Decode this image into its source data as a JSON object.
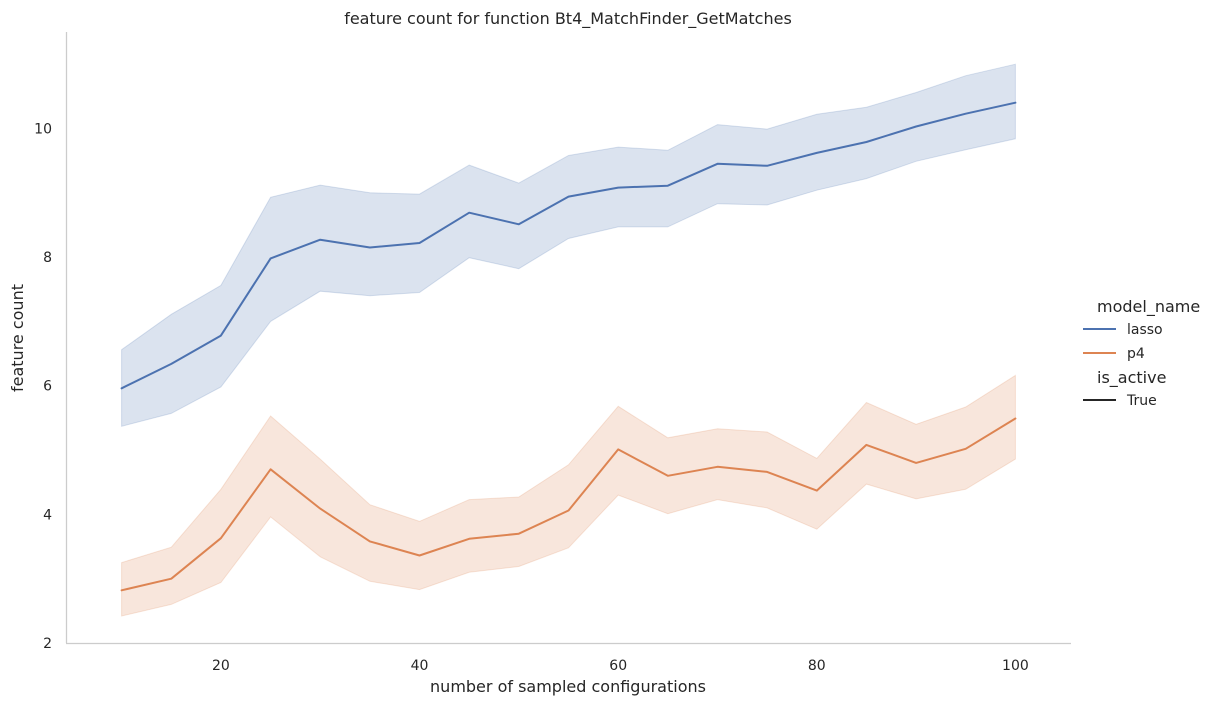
{
  "chart_data": {
    "type": "line",
    "title": "feature count for function Bt4_MatchFinder_GetMatches",
    "xlabel": "number of sampled configurations",
    "ylabel": "feature count",
    "xlim": [
      4.4,
      105.6
    ],
    "ylim": [
      2.0,
      11.5
    ],
    "xticks": [
      20,
      40,
      60,
      80,
      100
    ],
    "yticks": [
      2,
      4,
      6,
      8,
      10
    ],
    "grid": false,
    "legend_position": "right",
    "legend": {
      "hue_title": "model_name",
      "style_title": "is_active",
      "style_entries": [
        "True"
      ]
    },
    "x": [
      10,
      15,
      20,
      25,
      30,
      35,
      40,
      45,
      50,
      55,
      60,
      65,
      70,
      75,
      80,
      85,
      90,
      95,
      100
    ],
    "series": [
      {
        "name": "lasso",
        "color": "#4c72b0",
        "values": [
          5.96,
          6.34,
          6.78,
          7.98,
          8.27,
          8.15,
          8.22,
          8.69,
          8.51,
          8.94,
          9.08,
          9.11,
          9.45,
          9.42,
          9.62,
          9.79,
          10.03,
          10.23,
          10.4
        ],
        "ci_lower": [
          5.37,
          5.57,
          5.98,
          7.0,
          7.47,
          7.4,
          7.45,
          7.99,
          7.82,
          8.29,
          8.47,
          8.47,
          8.83,
          8.81,
          9.04,
          9.22,
          9.49,
          9.67,
          9.84
        ],
        "ci_upper": [
          6.56,
          7.11,
          7.56,
          8.93,
          9.12,
          9.0,
          8.98,
          9.43,
          9.15,
          9.58,
          9.71,
          9.66,
          10.06,
          9.99,
          10.22,
          10.33,
          10.56,
          10.82,
          11.0
        ]
      },
      {
        "name": "p4",
        "color": "#dd8452",
        "values": [
          2.82,
          3.0,
          3.63,
          4.7,
          4.09,
          3.58,
          3.36,
          3.62,
          3.7,
          4.06,
          5.01,
          4.6,
          4.74,
          4.66,
          4.37,
          5.08,
          4.8,
          5.02,
          5.49
        ],
        "ci_lower": [
          2.42,
          2.6,
          2.94,
          3.96,
          3.34,
          2.96,
          2.83,
          3.1,
          3.19,
          3.48,
          4.3,
          4.01,
          4.23,
          4.1,
          3.77,
          4.47,
          4.24,
          4.39,
          4.86
        ],
        "ci_upper": [
          3.25,
          3.49,
          4.39,
          5.53,
          4.86,
          4.15,
          3.89,
          4.23,
          4.27,
          4.77,
          5.68,
          5.19,
          5.33,
          5.28,
          4.87,
          5.74,
          5.4,
          5.67,
          6.16
        ]
      }
    ]
  }
}
